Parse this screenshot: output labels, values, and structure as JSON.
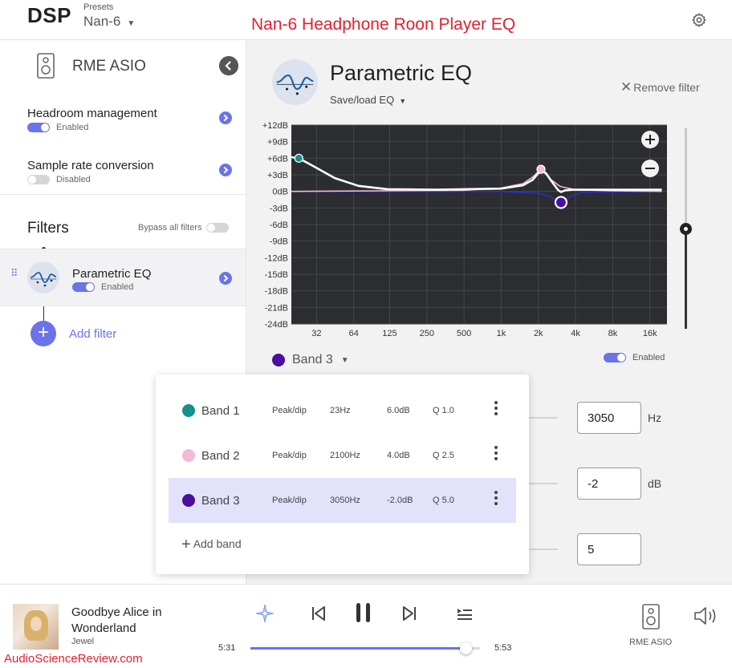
{
  "header": {
    "app_title": "DSP",
    "presets_label": "Presets",
    "preset_value": "Nan-6",
    "banner": "Nan-6 Headphone Roon Player EQ",
    "banner_color": "#e4202e"
  },
  "sidebar": {
    "device_name": "RME ASIO",
    "settings": [
      {
        "title": "Headroom management",
        "status": "Enabled",
        "on": true
      },
      {
        "title": "Sample rate conversion",
        "status": "Disabled",
        "on": false
      }
    ],
    "filters_title": "Filters",
    "bypass_label": "Bypass all filters",
    "filter": {
      "name": "Parametric EQ",
      "status": "Enabled"
    },
    "add_filter_label": "Add filter"
  },
  "main": {
    "title": "Parametric EQ",
    "save_load": "Save/load EQ",
    "remove_filter": "Remove filter",
    "selected_band": "Band 3",
    "band_enabled": "Enabled",
    "params": [
      {
        "value": "3050",
        "unit": "Hz"
      },
      {
        "value": "-2",
        "unit": "dB"
      },
      {
        "value": "5",
        "unit": ""
      }
    ],
    "accent_color": "#6b73e8"
  },
  "bands_popup": {
    "bands": [
      {
        "name": "Band 1",
        "type": "Peak/dip",
        "freq": "23Hz",
        "gain": "6.0dB",
        "q": "Q 1.0",
        "color": "#14918a"
      },
      {
        "name": "Band 2",
        "type": "Peak/dip",
        "freq": "2100Hz",
        "gain": "4.0dB",
        "q": "Q 2.5",
        "color": "#f6b8d9"
      },
      {
        "name": "Band 3",
        "type": "Peak/dip",
        "freq": "3050Hz",
        "gain": "-2.0dB",
        "q": "Q 5.0",
        "color": "#4a0f9c"
      }
    ],
    "add_band": "Add band"
  },
  "chart_data": {
    "type": "line",
    "y_ticks": [
      "+12dB",
      "+9dB",
      "+6dB",
      "+3dB",
      "0dB",
      "-3dB",
      "-6dB",
      "-9dB",
      "-12dB",
      "-15dB",
      "-18dB",
      "-21dB",
      "-24dB"
    ],
    "x_ticks": [
      "32",
      "64",
      "125",
      "250",
      "500",
      "1k",
      "2k",
      "4k",
      "8k",
      "16k"
    ],
    "x_tick_values": [
      32,
      64,
      125,
      250,
      500,
      1000,
      2000,
      4000,
      8000,
      16000
    ],
    "ylim": [
      -24,
      12
    ],
    "xlim": [
      20,
      22000
    ],
    "x_scale": "log",
    "series": [
      {
        "color": "#ffffff",
        "x": [
          20,
          23,
          30,
          45,
          70,
          120,
          300,
          1000,
          1500,
          1800,
          2000,
          2100,
          2300,
          2600,
          2900,
          3050,
          3300,
          3800,
          5000,
          10000,
          20000
        ],
        "y": [
          6.2,
          6.0,
          4.6,
          2.4,
          1.0,
          0.4,
          0.3,
          0.5,
          1.1,
          2.1,
          3.3,
          3.9,
          3.3,
          1.6,
          0.2,
          -0.1,
          0.2,
          0.3,
          0.3,
          0.3,
          0.3
        ]
      },
      {
        "color": "#f6b8d9",
        "x": [
          20,
          500,
          1000,
          1500,
          1800,
          2000,
          2100,
          2200,
          2500,
          3000,
          4000,
          8000,
          20000
        ],
        "y": [
          0,
          0.2,
          0.6,
          1.4,
          2.6,
          3.6,
          4.0,
          3.6,
          2.2,
          0.9,
          0.3,
          0.1,
          0
        ]
      },
      {
        "color": "#2f2ac8",
        "x": [
          20,
          1000,
          2000,
          2500,
          2800,
          3050,
          3300,
          3700,
          4500,
          20000
        ],
        "y": [
          0,
          -0.05,
          -0.3,
          -0.9,
          -1.6,
          -2.0,
          -1.6,
          -0.8,
          -0.2,
          0
        ]
      }
    ],
    "points": [
      {
        "x": 23,
        "y": 6.0,
        "color": "#14918a"
      },
      {
        "x": 2100,
        "y": 4.0,
        "color": "#f6b8d9"
      },
      {
        "x": 3050,
        "y": -2.0,
        "color": "#4a0f9c"
      }
    ],
    "grid": true,
    "background": "#2b2d31"
  },
  "player": {
    "track_title": "Goodbye Alice in Wonderland",
    "artist": "Jewel",
    "time_elapsed": "5:31",
    "time_total": "5:53",
    "progress": 0.937,
    "output_label": "RME ASIO"
  },
  "watermark": "AudioScienceReview.com"
}
